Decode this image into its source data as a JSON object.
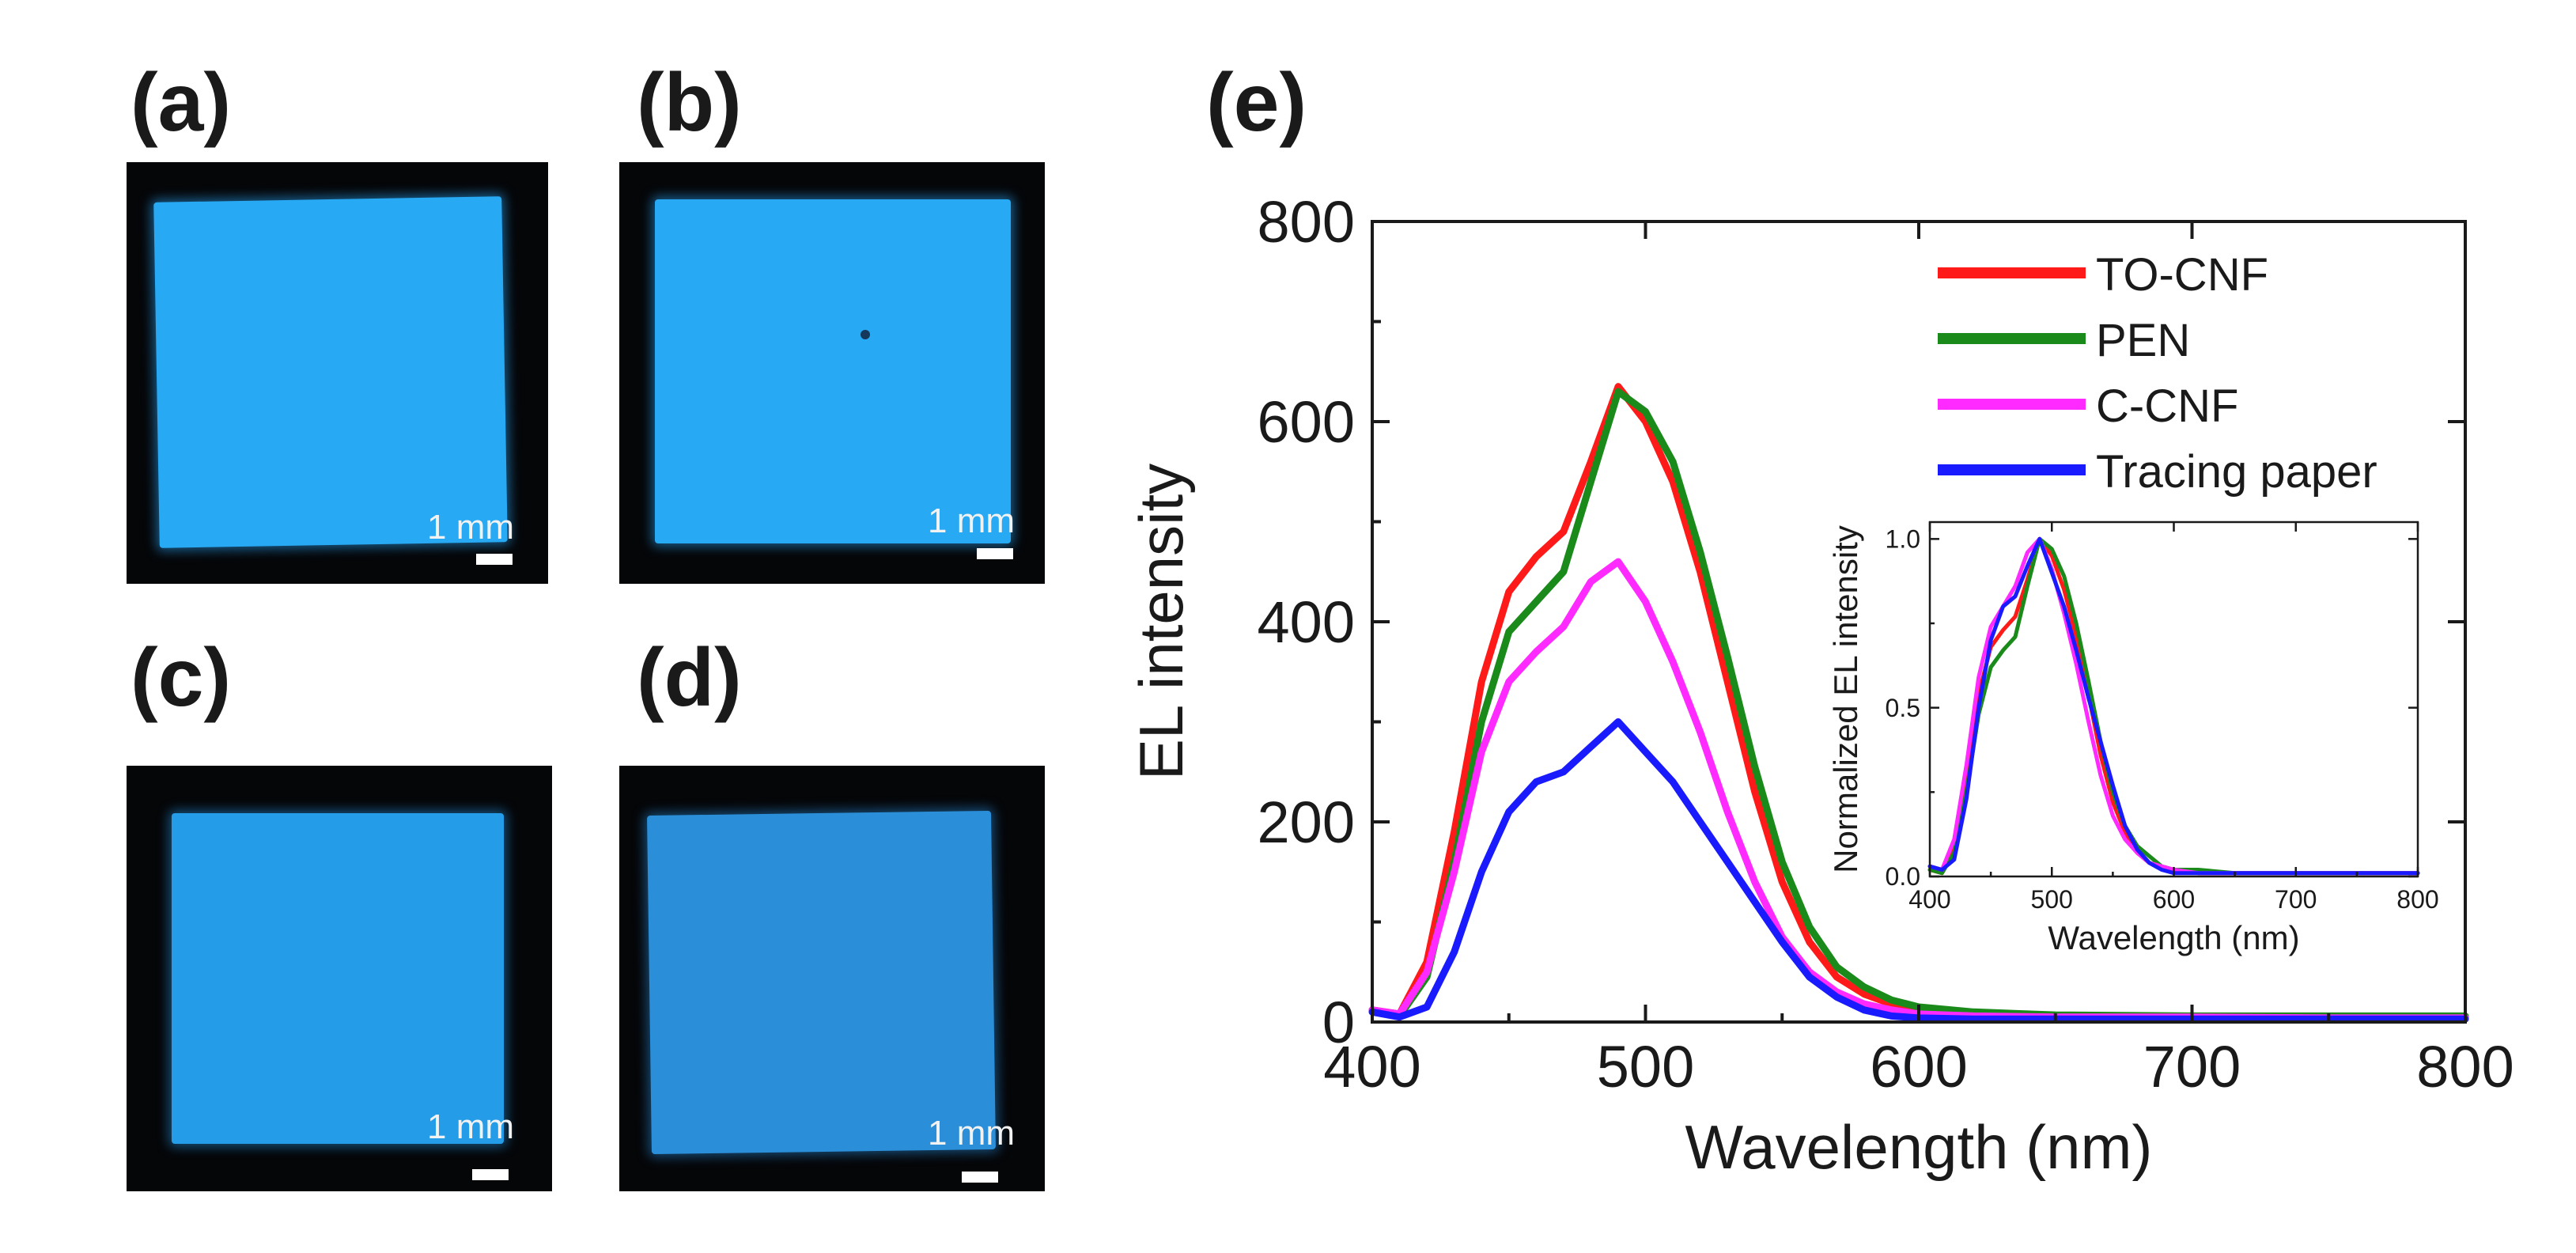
{
  "panels": {
    "a": {
      "label": "(a)",
      "scale": "1 mm"
    },
    "b": {
      "label": "(b)",
      "scale": "1 mm"
    },
    "c": {
      "label": "(c)",
      "scale": "1 mm"
    },
    "d": {
      "label": "(d)",
      "scale": "1 mm"
    },
    "e": {
      "label": "(e)"
    }
  },
  "colors": {
    "emission": "#22a8f2",
    "emission_d": "#2a8fd8",
    "dark": "#050608"
  },
  "chart_data": [
    {
      "type": "line",
      "title": "",
      "xlabel": "Wavelength (nm)",
      "ylabel": "EL intensity",
      "xlim": [
        400,
        800
      ],
      "ylim": [
        0,
        800
      ],
      "xticks": [
        400,
        500,
        600,
        700,
        800
      ],
      "yticks": [
        0,
        200,
        400,
        600,
        800
      ],
      "legend_position": "top-right",
      "series": [
        {
          "name": "TO-CNF",
          "color": "#ff1a1a",
          "x": [
            400,
            410,
            420,
            430,
            440,
            450,
            460,
            470,
            480,
            490,
            500,
            510,
            520,
            530,
            540,
            550,
            560,
            570,
            580,
            590,
            600,
            620,
            650,
            700,
            750,
            800
          ],
          "y": [
            12,
            8,
            60,
            190,
            340,
            430,
            465,
            490,
            560,
            635,
            600,
            540,
            450,
            340,
            230,
            140,
            80,
            45,
            28,
            18,
            12,
            8,
            6,
            5,
            5,
            5
          ]
        },
        {
          "name": "PEN",
          "color": "#1a8a1a",
          "x": [
            400,
            410,
            420,
            430,
            440,
            450,
            460,
            470,
            480,
            490,
            500,
            510,
            520,
            530,
            540,
            550,
            560,
            570,
            580,
            590,
            600,
            620,
            650,
            700,
            750,
            800
          ],
          "y": [
            12,
            6,
            45,
            160,
            300,
            390,
            420,
            450,
            540,
            630,
            610,
            560,
            470,
            365,
            255,
            160,
            95,
            55,
            35,
            22,
            15,
            10,
            7,
            6,
            6,
            6
          ]
        },
        {
          "name": "C-CNF",
          "color": "#ff2aff",
          "x": [
            400,
            410,
            420,
            430,
            440,
            450,
            460,
            470,
            480,
            490,
            500,
            510,
            520,
            530,
            540,
            550,
            560,
            570,
            580,
            590,
            600,
            620,
            650,
            700,
            750,
            800
          ],
          "y": [
            12,
            8,
            50,
            150,
            270,
            340,
            370,
            395,
            440,
            460,
            420,
            360,
            290,
            210,
            140,
            85,
            50,
            30,
            18,
            12,
            8,
            6,
            5,
            5,
            4,
            4
          ]
        },
        {
          "name": "Tracing paper",
          "color": "#1a1aff",
          "x": [
            400,
            410,
            420,
            430,
            440,
            450,
            460,
            470,
            480,
            490,
            500,
            510,
            520,
            530,
            540,
            550,
            560,
            570,
            580,
            590,
            600,
            620,
            650,
            700,
            750,
            800
          ],
          "y": [
            10,
            5,
            15,
            70,
            150,
            210,
            240,
            250,
            275,
            300,
            270,
            240,
            200,
            160,
            120,
            80,
            45,
            25,
            12,
            6,
            4,
            3,
            3,
            3,
            3,
            3
          ]
        }
      ]
    },
    {
      "type": "line",
      "title": "",
      "xlabel": "Wavelength (nm)",
      "ylabel": "Normalized EL intensity",
      "xlim": [
        400,
        800
      ],
      "ylim": [
        0,
        1.05
      ],
      "xticks": [
        400,
        500,
        600,
        700,
        800
      ],
      "yticks": [
        0.0,
        0.5,
        1.0
      ],
      "yticklabels": [
        "0.0",
        "0.5",
        "1.0"
      ],
      "series": [
        {
          "name": "TO-CNF",
          "color": "#ff1a1a",
          "x": [
            400,
            410,
            420,
            430,
            440,
            450,
            460,
            470,
            480,
            490,
            500,
            510,
            520,
            530,
            540,
            550,
            560,
            570,
            580,
            590,
            600,
            620,
            650,
            700,
            750,
            800
          ],
          "y": [
            0.02,
            0.01,
            0.09,
            0.3,
            0.54,
            0.68,
            0.73,
            0.77,
            0.88,
            1.0,
            0.95,
            0.85,
            0.71,
            0.54,
            0.36,
            0.22,
            0.13,
            0.07,
            0.04,
            0.03,
            0.02,
            0.01,
            0.01,
            0.01,
            0.01,
            0.01
          ]
        },
        {
          "name": "PEN",
          "color": "#1a8a1a",
          "x": [
            400,
            410,
            420,
            430,
            440,
            450,
            460,
            470,
            480,
            490,
            500,
            510,
            520,
            530,
            540,
            550,
            560,
            570,
            580,
            590,
            600,
            620,
            650,
            700,
            750,
            800
          ],
          "y": [
            0.02,
            0.01,
            0.07,
            0.25,
            0.48,
            0.62,
            0.67,
            0.71,
            0.86,
            1.0,
            0.97,
            0.89,
            0.75,
            0.58,
            0.4,
            0.25,
            0.15,
            0.09,
            0.06,
            0.03,
            0.02,
            0.02,
            0.01,
            0.01,
            0.01,
            0.01
          ]
        },
        {
          "name": "C-CNF",
          "color": "#ff2aff",
          "x": [
            400,
            410,
            420,
            430,
            440,
            450,
            460,
            470,
            480,
            490,
            500,
            510,
            520,
            530,
            540,
            550,
            560,
            570,
            580,
            590,
            600,
            620,
            650,
            700,
            750,
            800
          ],
          "y": [
            0.03,
            0.02,
            0.11,
            0.33,
            0.59,
            0.74,
            0.8,
            0.86,
            0.96,
            1.0,
            0.91,
            0.78,
            0.63,
            0.46,
            0.3,
            0.18,
            0.11,
            0.07,
            0.04,
            0.03,
            0.02,
            0.01,
            0.01,
            0.01,
            0.01,
            0.01
          ]
        },
        {
          "name": "Tracing paper",
          "color": "#1a1aff",
          "x": [
            400,
            410,
            420,
            430,
            440,
            450,
            460,
            470,
            480,
            490,
            500,
            510,
            520,
            530,
            540,
            550,
            560,
            570,
            580,
            590,
            600,
            620,
            650,
            700,
            750,
            800
          ],
          "y": [
            0.03,
            0.02,
            0.05,
            0.23,
            0.5,
            0.7,
            0.8,
            0.83,
            0.92,
            1.0,
            0.9,
            0.8,
            0.67,
            0.53,
            0.4,
            0.27,
            0.15,
            0.08,
            0.04,
            0.02,
            0.01,
            0.01,
            0.01,
            0.01,
            0.01,
            0.01
          ]
        }
      ]
    }
  ]
}
